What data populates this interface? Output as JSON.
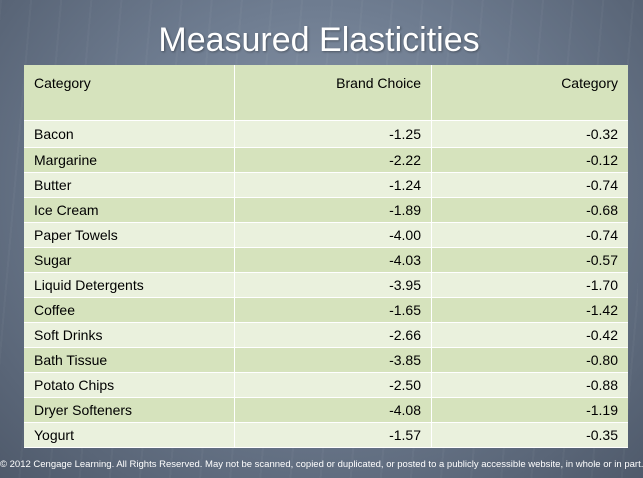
{
  "title": "Measured Elasticities",
  "table": {
    "headers": [
      "Category",
      "Brand Choice",
      "Category"
    ],
    "rows": [
      [
        "Bacon",
        "-1.25",
        "-0.32"
      ],
      [
        "Margarine",
        "-2.22",
        "-0.12"
      ],
      [
        "Butter",
        "-1.24",
        "-0.74"
      ],
      [
        "Ice Cream",
        "-1.89",
        "-0.68"
      ],
      [
        "Paper Towels",
        "-4.00",
        "-0.74"
      ],
      [
        "Sugar",
        "-4.03",
        "-0.57"
      ],
      [
        "Liquid Detergents",
        "-3.95",
        "-1.70"
      ],
      [
        "Coffee",
        "-1.65",
        "-1.42"
      ],
      [
        "Soft Drinks",
        "-2.66",
        "-0.42"
      ],
      [
        "Bath Tissue",
        "-3.85",
        "-0.80"
      ],
      [
        "Potato Chips",
        "-2.50",
        "-0.88"
      ],
      [
        "Dryer Softeners",
        "-4.08",
        "-1.19"
      ],
      [
        "Yogurt",
        "-1.57",
        "-0.35"
      ]
    ]
  },
  "footer": {
    "copyright": "© 2012 Cengage Learning. All Rights Reserved. May not be scanned, copied or duplicated, or posted to a publicly accessible website, in whole or in part."
  },
  "colors": {
    "row_light": "#eaf1dd",
    "row_dark": "#d6e3bd",
    "title_text": "#ffffff"
  }
}
